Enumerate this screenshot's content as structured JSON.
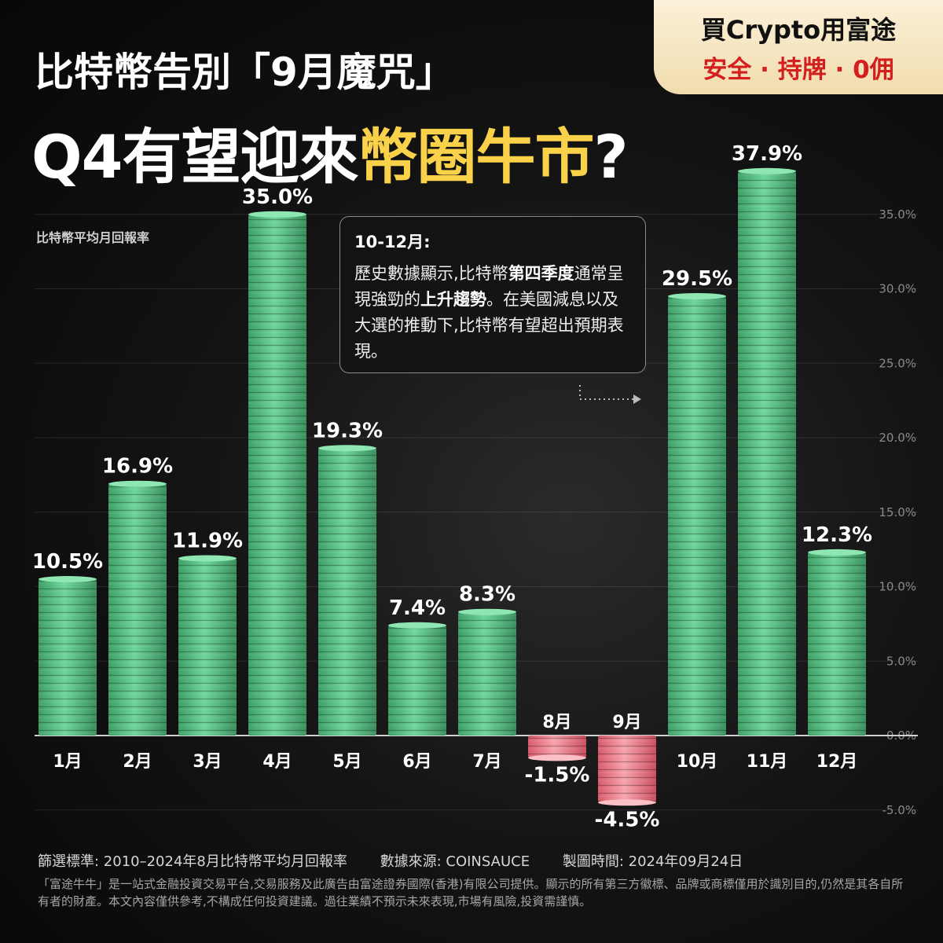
{
  "badge": {
    "line1": "買Crypto用富途",
    "line2": "安全 · 持牌 · 0佣"
  },
  "title": {
    "line1": "比特幣告別「9月魔咒」",
    "line2_prefix": "Q4有望迎來",
    "line2_highlight": "幣圈牛市",
    "line2_suffix": "?"
  },
  "callout": {
    "heading": "10-12月:",
    "text_1": "歷史數據顯示,比特幣",
    "bold_1": "第四季度",
    "text_2": "通常呈現強勁的",
    "bold_2": "上升趨勢",
    "text_3": "。在美國減息以及大選的推動下,比特幣有望超出預期表現。"
  },
  "footer": {
    "criteria": "篩選標準: 2010–2024年8月比特幣平均月回報率",
    "source": "數據來源: COINSAUCE",
    "date": "製圖時間: 2024年09月24日",
    "disclaimer": "「富途牛牛」是一站式金融投資交易平台,交易服務及此廣告由富途證券國際(香港)有限公司提供。顯示的所有第三方徽標、品牌或商標僅用於識別目的,仍然是其各自所有者的財產。本文內容僅供參考,不構成任何投資建議。過往業績不預示未來表現,市場有風險,投資需謹慎。"
  },
  "chart_data": {
    "type": "bar",
    "ylabel": "比特幣平均月回報率",
    "categories": [
      "1月",
      "2月",
      "3月",
      "4月",
      "5月",
      "6月",
      "7月",
      "8月",
      "9月",
      "10月",
      "11月",
      "12月"
    ],
    "values": [
      10.5,
      16.9,
      11.9,
      35.0,
      19.3,
      7.4,
      8.3,
      -1.5,
      -4.5,
      29.5,
      37.9,
      12.3
    ],
    "value_labels": [
      "10.5%",
      "16.9%",
      "11.9%",
      "35.0%",
      "19.3%",
      "7.4%",
      "8.3%",
      "-1.5%",
      "-4.5%",
      "29.5%",
      "37.9%",
      "12.3%"
    ],
    "yticks": [
      "35.0%",
      "30.0%",
      "25.0%",
      "20.0%",
      "15.0%",
      "10.0%",
      "5.0%",
      "0.0%",
      "-5.0%"
    ],
    "ylim": [
      -5,
      37.9
    ],
    "colors": {
      "positive": "#5cc98a",
      "negative": "#f28a96"
    }
  }
}
